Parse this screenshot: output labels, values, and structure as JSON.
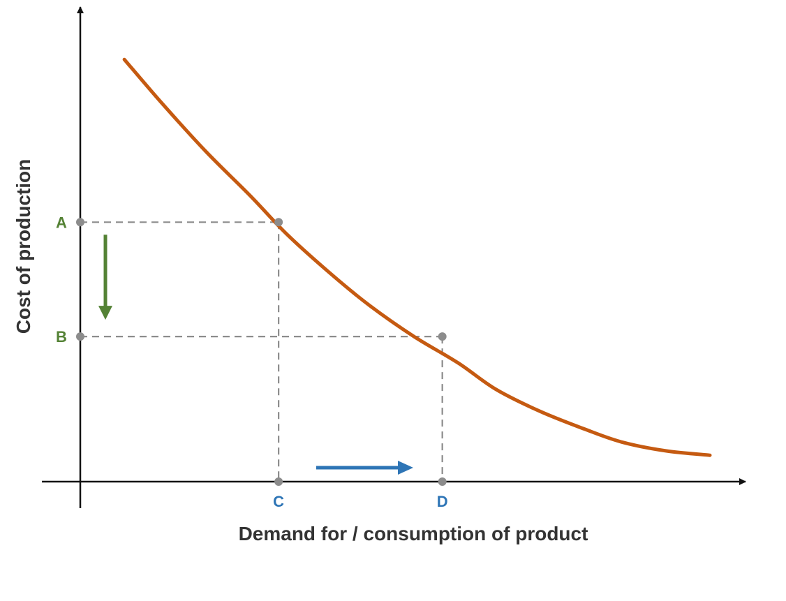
{
  "chart_data": {
    "type": "line",
    "title": "",
    "xlabel": "Demand for / consumption of product",
    "ylabel": "Cost of production",
    "grid": false,
    "xlim": [
      0,
      100
    ],
    "ylim": [
      0,
      100
    ],
    "series": [
      {
        "color": "#C55A11",
        "x": [
          7,
          13,
          20,
          27,
          33,
          40,
          46,
          53,
          60,
          66,
          73,
          80,
          86,
          93,
          100
        ],
        "y": [
          96,
          86,
          75,
          65,
          56,
          47,
          40,
          33,
          27,
          21,
          16,
          12,
          9,
          7,
          6
        ]
      }
    ],
    "x_markers": [
      {
        "label": "C",
        "x": 31.5,
        "color": "#2E75B6"
      },
      {
        "label": "D",
        "x": 57.5,
        "color": "#2E75B6"
      }
    ],
    "y_markers": [
      {
        "label": "A",
        "y": 59,
        "color": "#548235"
      },
      {
        "label": "B",
        "y": 33,
        "color": "#548235"
      }
    ],
    "arrows": [
      {
        "name": "cost-decrease-arrow",
        "direction": "down",
        "color": "#548235"
      },
      {
        "name": "demand-increase-arrow",
        "direction": "right",
        "color": "#2E75B6"
      }
    ],
    "colors": {
      "axis": "#111111",
      "guide": "#8C8C8C",
      "axis_title": "#333333"
    }
  }
}
